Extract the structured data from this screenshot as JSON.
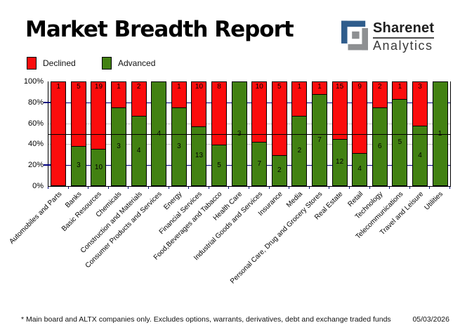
{
  "header": {
    "title": "Market Breadth Report"
  },
  "logo": {
    "name_top": "Sharenet",
    "name_bottom": "Analytics",
    "blue": "#2f5d8c",
    "gray": "#8e9092"
  },
  "legend": {
    "declined_label": "Declined",
    "advanced_label": "Advanced"
  },
  "colors": {
    "declined": "#fb0c0c",
    "advanced": "#428112",
    "grid_major": "#000080",
    "grid_minor": "#c0c0c0",
    "midline": "#000000"
  },
  "footer": {
    "note": "* Main board and ALTX companies only. Excludes options, warrants, derivatives, debt and exchange traded funds",
    "date": "05/03/2026"
  },
  "chart_data": {
    "type": "bar",
    "variant": "100-percent-stacked-column",
    "title": "Market Breadth Report",
    "categories": [
      "Automobiles and Parts",
      "Banks",
      "Basic Resources",
      "Chemicals",
      "Construction and Materials",
      "Consumer Products and Services",
      "Energy",
      "Financial Services",
      "Food,Beverages and Tabacco",
      "Health Care",
      "Industrial Goods and Services",
      "Insurance",
      "Media",
      "Personal Care, Drug and Grocery Stores",
      "Real Estate",
      "Retail",
      "Technology",
      "Telecommunications",
      "Travel and Leisure",
      "Utilities"
    ],
    "series": [
      {
        "name": "Declined",
        "color": "#fb0c0c",
        "values": [
          1,
          5,
          19,
          1,
          2,
          0,
          1,
          10,
          8,
          0,
          10,
          5,
          1,
          1,
          15,
          9,
          2,
          1,
          3,
          0
        ]
      },
      {
        "name": "Advanced",
        "color": "#428112",
        "values": [
          0,
          3,
          10,
          3,
          4,
          4,
          3,
          13,
          5,
          3,
          7,
          2,
          2,
          7,
          12,
          4,
          6,
          5,
          4,
          1
        ]
      }
    ],
    "y_axis": {
      "ticks": [
        "100%",
        "80%",
        "60%",
        "40%",
        "20%",
        "0%"
      ],
      "range": [
        0,
        100
      ],
      "unit": "%"
    },
    "gridlines": {
      "navy_at": [
        80,
        20
      ],
      "gray_at": [
        60,
        40
      ],
      "black_at": [
        50
      ]
    },
    "legend_position": "top-left",
    "bar_labels": "segment counts shown inside bars"
  }
}
